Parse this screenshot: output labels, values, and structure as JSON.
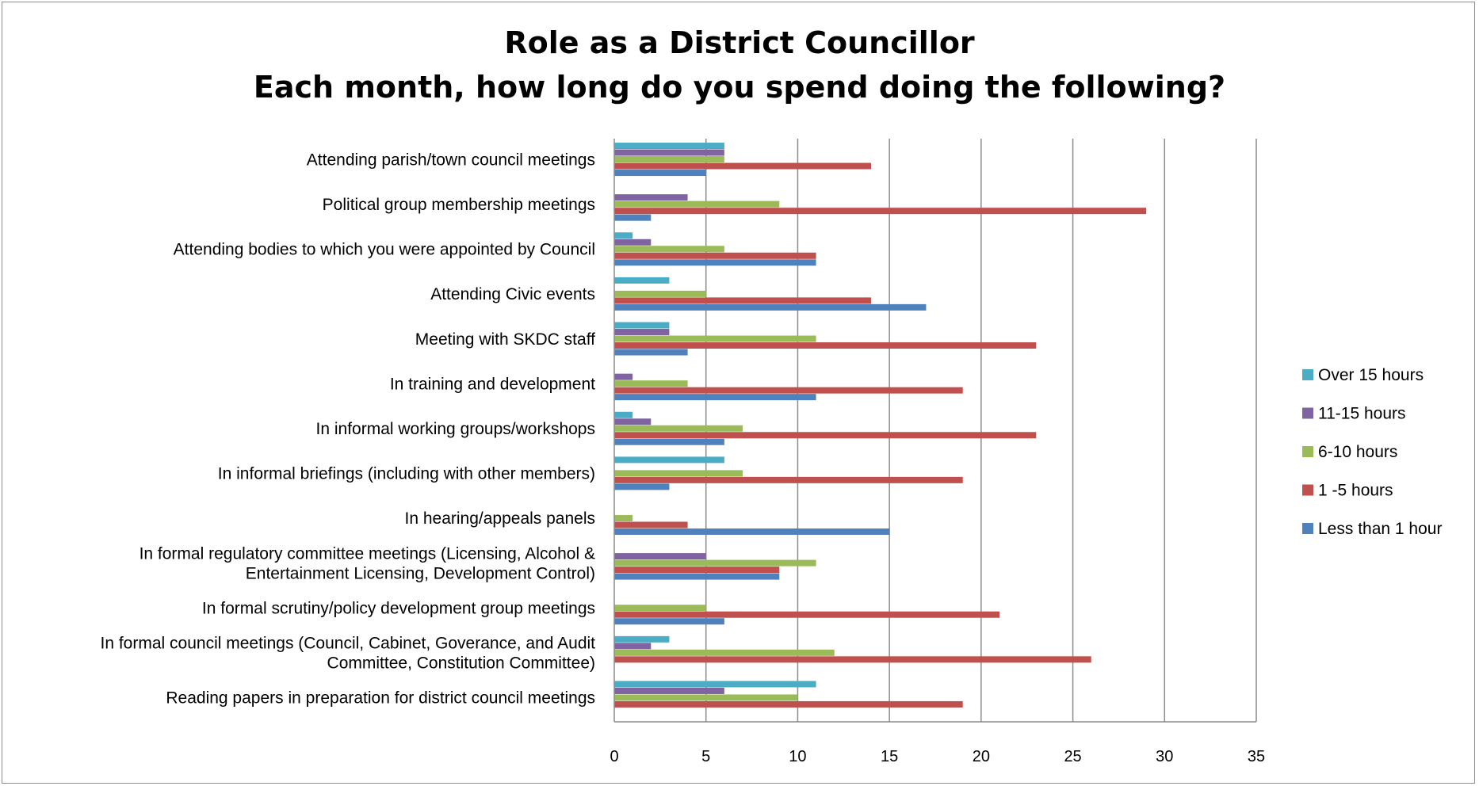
{
  "chart_data": {
    "type": "bar",
    "orientation": "horizontal",
    "title_lines": [
      "Role as a District Councillor",
      "Each month, how long do you spend doing the following?"
    ],
    "categories": [
      [
        "Attending parish/town council meetings"
      ],
      [
        "Political group membership meetings"
      ],
      [
        "Attending bodies to which you were appointed by Council"
      ],
      [
        "Attending Civic events"
      ],
      [
        "Meeting with SKDC staff"
      ],
      [
        "In training and development"
      ],
      [
        "In informal working groups/workshops"
      ],
      [
        "In informal briefings (including with other members)"
      ],
      [
        "In hearing/appeals panels"
      ],
      [
        "In formal regulatory committee meetings (Licensing, Alcohol &",
        "Entertainment Licensing, Development Control)"
      ],
      [
        "In formal scrutiny/policy development group meetings"
      ],
      [
        "In formal council meetings (Council, Cabinet, Goverance, and Audit",
        "Committee, Constitution Committee)"
      ],
      [
        "Reading papers in preparation for district council meetings"
      ]
    ],
    "series": [
      {
        "name": "Over 15 hours",
        "color": "#4BACC6",
        "values": [
          6,
          0,
          1,
          3,
          3,
          0,
          1,
          6,
          0,
          0,
          0,
          3,
          11
        ]
      },
      {
        "name": "11-15 hours",
        "color": "#8064A2",
        "values": [
          6,
          4,
          2,
          0,
          3,
          1,
          2,
          0,
          0,
          5,
          0,
          2,
          6
        ]
      },
      {
        "name": "6-10 hours",
        "color": "#9BBB59",
        "values": [
          6,
          9,
          6,
          5,
          11,
          4,
          7,
          7,
          1,
          11,
          5,
          12,
          10
        ]
      },
      {
        "name": "1 -5 hours",
        "color": "#C0504D",
        "values": [
          14,
          29,
          11,
          14,
          23,
          19,
          23,
          19,
          4,
          9,
          21,
          26,
          19
        ]
      },
      {
        "name": "Less than 1 hour",
        "color": "#4F81BD",
        "values": [
          5,
          2,
          11,
          17,
          4,
          11,
          6,
          3,
          15,
          9,
          6,
          0,
          0
        ]
      }
    ],
    "xlim": [
      0,
      35
    ],
    "xticks": [
      0,
      5,
      10,
      15,
      20,
      25,
      30,
      35
    ],
    "grid": "vertical",
    "legend": "right"
  }
}
